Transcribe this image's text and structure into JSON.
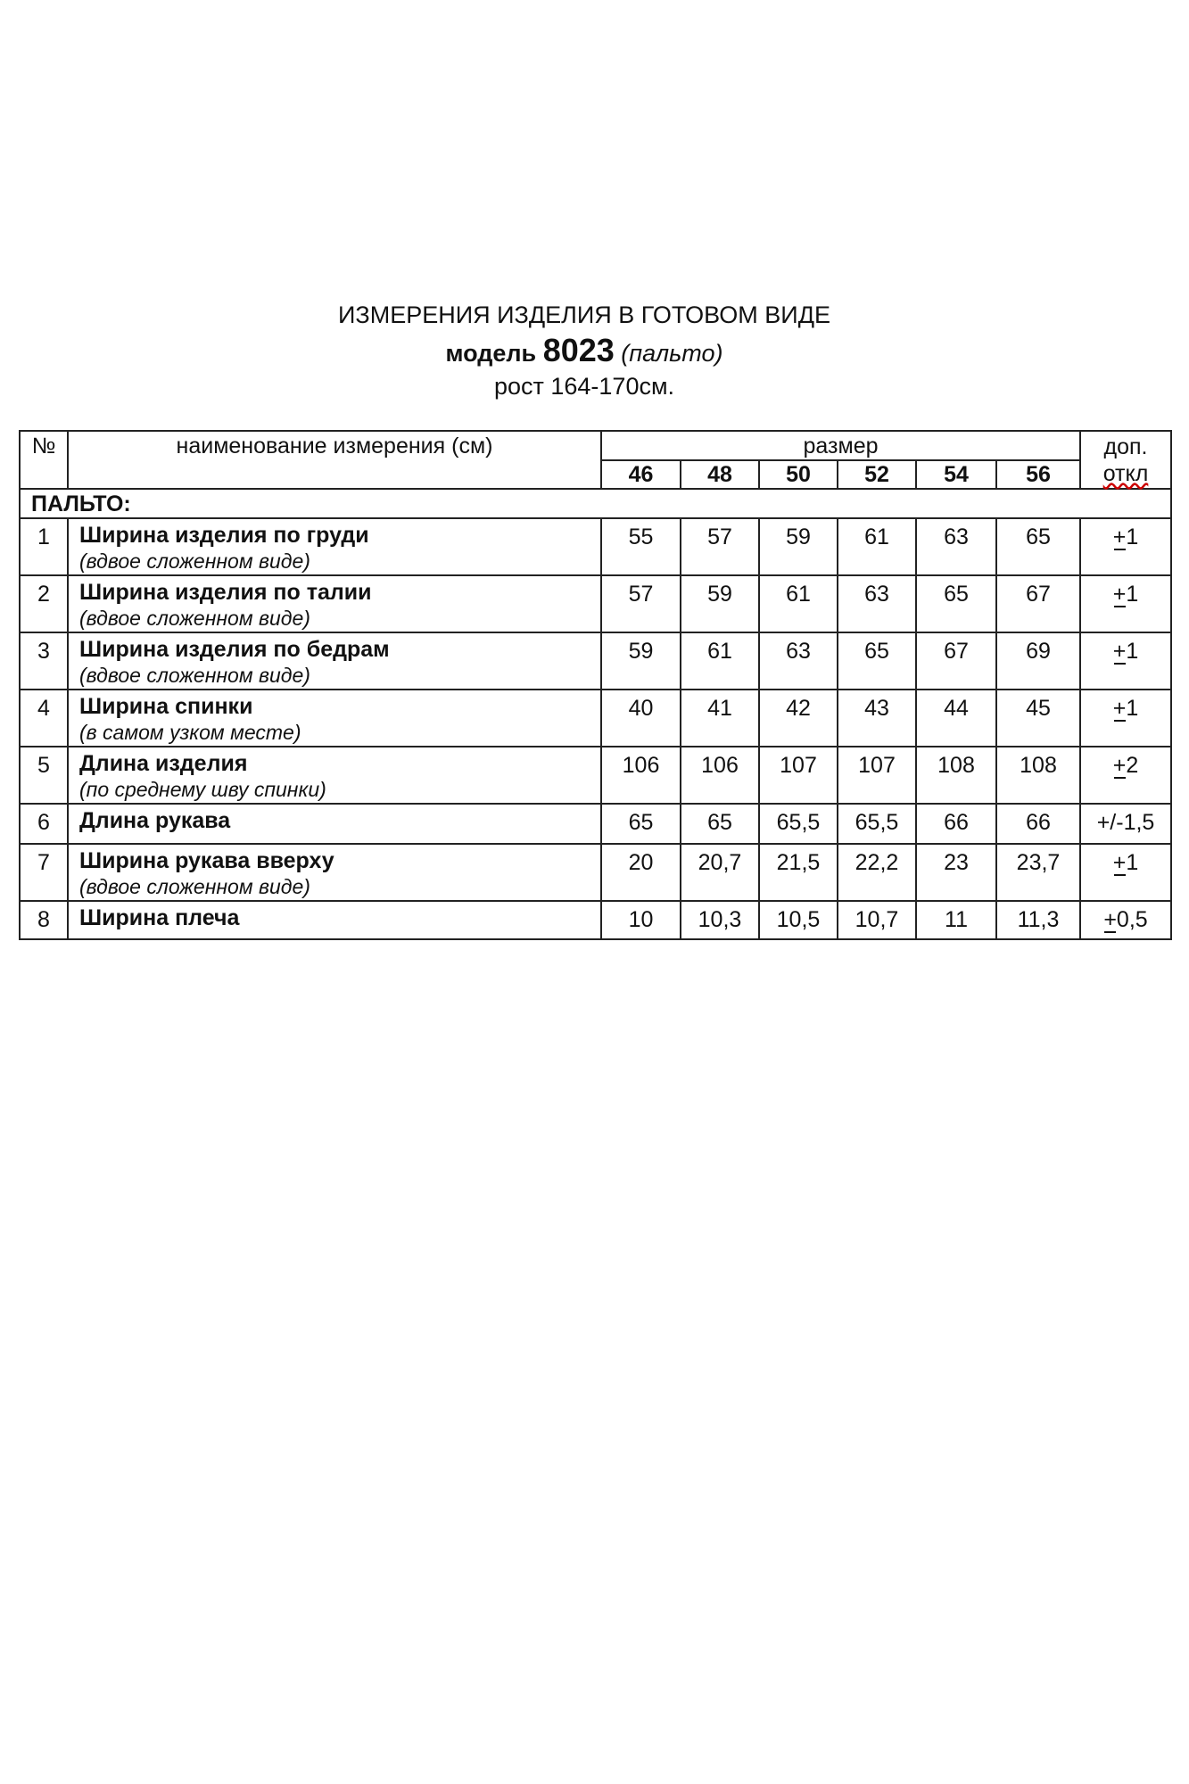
{
  "header": {
    "title": "ИЗМЕРЕНИЯ ИЗДЕЛИЯ В ГОТОВОМ ВИДЕ",
    "model_label": "модель",
    "model_number": "8023",
    "model_type": "(пальто)",
    "height": "рост 164-170см."
  },
  "table": {
    "col_no": "№",
    "col_name": "наименование измерения (см)",
    "col_size": "размер",
    "col_tol_1": "доп.",
    "col_tol_2": "откл",
    "sizes": [
      "46",
      "48",
      "50",
      "52",
      "54",
      "56"
    ],
    "section": "ПАЛЬТО:",
    "rows": [
      {
        "no": "1",
        "name": "Ширина изделия по груди",
        "note": "(вдвое сложенном виде)",
        "values": [
          "55",
          "57",
          "59",
          "61",
          "63",
          "65"
        ],
        "tol": "+1"
      },
      {
        "no": "2",
        "name": "Ширина изделия по талии",
        "note": "(вдвое сложенном виде)",
        "values": [
          "57",
          "59",
          "61",
          "63",
          "65",
          "67"
        ],
        "tol": "+1"
      },
      {
        "no": "3",
        "name": "Ширина изделия по бедрам",
        "note": "(вдвое сложенном виде)",
        "values": [
          "59",
          "61",
          "63",
          "65",
          "67",
          "69"
        ],
        "tol": "+1"
      },
      {
        "no": "4",
        "name": "Ширина спинки",
        "note": " (в самом узком месте)",
        "values": [
          "40",
          "41",
          "42",
          "43",
          "44",
          "45"
        ],
        "tol": "+1"
      },
      {
        "no": "5",
        "name": "Длина изделия",
        "note": " (по среднему шву спинки)",
        "values": [
          "106",
          "106",
          "107",
          "107",
          "108",
          "108"
        ],
        "tol": "+2"
      },
      {
        "no": "6",
        "name": "Длина рукава",
        "note": "",
        "values": [
          "65",
          "65",
          "65,5",
          "65,5",
          "66",
          "66"
        ],
        "tol": "+/-1,5"
      },
      {
        "no": "7",
        "name": "Ширина рукава вверху",
        "note": "(вдвое сложенном виде)",
        "values": [
          "20",
          "20,7",
          "21,5",
          "22,2",
          "23",
          "23,7"
        ],
        "tol": "+1"
      },
      {
        "no": "8",
        "name": "Ширина плеча",
        "note": "",
        "values": [
          "10",
          "10,3",
          "10,5",
          "10,7",
          "11",
          "11,3"
        ],
        "tol": "+0,5"
      }
    ]
  }
}
